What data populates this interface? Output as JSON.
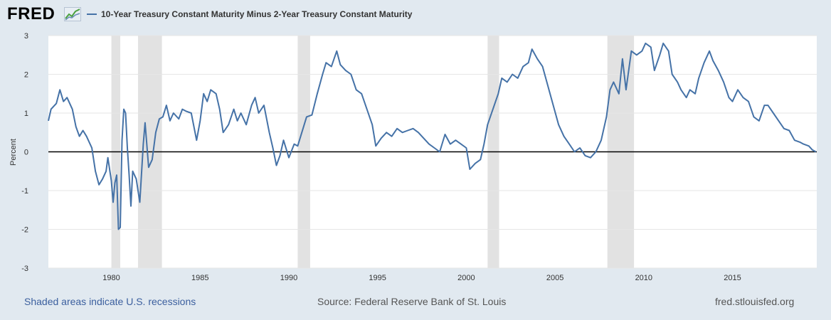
{
  "header": {
    "logo_text": "FRED",
    "series_label": "10-Year Treasury Constant Maturity Minus 2-Year Treasury Constant Maturity",
    "line_color": "#4572a7"
  },
  "footer": {
    "note": "Shaded areas indicate U.S. recessions",
    "source": "Source: Federal Reserve Bank of St. Louis",
    "url": "fred.stlouisfed.org"
  },
  "chart_data": {
    "type": "line",
    "title": "10-Year Treasury Constant Maturity Minus 2-Year Treasury Constant Maturity",
    "xlabel": "",
    "ylabel": "Percent",
    "xlim": [
      1976.45,
      2019.75
    ],
    "ylim": [
      -3,
      3
    ],
    "x_ticks": [
      1980,
      1985,
      1990,
      1995,
      2000,
      2005,
      2010,
      2015
    ],
    "y_ticks": [
      -3,
      -2,
      -1,
      0,
      1,
      2,
      3
    ],
    "grid": true,
    "zero_line": true,
    "recessions": [
      [
        1980.0,
        1980.5
      ],
      [
        1981.5,
        1982.85
      ],
      [
        1990.5,
        1991.2
      ],
      [
        2001.2,
        2001.85
      ],
      [
        2007.95,
        2009.45
      ]
    ],
    "series": [
      {
        "name": "10-Year Treasury Constant Maturity Minus 2-Year Treasury Constant Maturity",
        "color": "#4572a7",
        "points": [
          [
            1976.45,
            0.8
          ],
          [
            1976.6,
            1.1
          ],
          [
            1976.9,
            1.25
          ],
          [
            1977.1,
            1.6
          ],
          [
            1977.3,
            1.3
          ],
          [
            1977.5,
            1.4
          ],
          [
            1977.8,
            1.1
          ],
          [
            1978.0,
            0.65
          ],
          [
            1978.2,
            0.4
          ],
          [
            1978.4,
            0.55
          ],
          [
            1978.6,
            0.4
          ],
          [
            1978.9,
            0.1
          ],
          [
            1979.1,
            -0.5
          ],
          [
            1979.3,
            -0.85
          ],
          [
            1979.5,
            -0.7
          ],
          [
            1979.7,
            -0.5
          ],
          [
            1979.8,
            -0.15
          ],
          [
            1980.0,
            -0.75
          ],
          [
            1980.1,
            -1.3
          ],
          [
            1980.2,
            -0.8
          ],
          [
            1980.3,
            -0.6
          ],
          [
            1980.4,
            -2.0
          ],
          [
            1980.5,
            -1.95
          ],
          [
            1980.6,
            0.3
          ],
          [
            1980.7,
            1.1
          ],
          [
            1980.8,
            1.0
          ],
          [
            1980.9,
            0.1
          ],
          [
            1981.0,
            -0.6
          ],
          [
            1981.1,
            -1.4
          ],
          [
            1981.2,
            -0.5
          ],
          [
            1981.4,
            -0.7
          ],
          [
            1981.5,
            -1.0
          ],
          [
            1981.6,
            -1.3
          ],
          [
            1981.8,
            0.2
          ],
          [
            1981.9,
            0.75
          ],
          [
            1982.1,
            -0.4
          ],
          [
            1982.3,
            -0.2
          ],
          [
            1982.5,
            0.5
          ],
          [
            1982.7,
            0.85
          ],
          [
            1982.9,
            0.9
          ],
          [
            1983.1,
            1.2
          ],
          [
            1983.3,
            0.8
          ],
          [
            1983.5,
            1.0
          ],
          [
            1983.8,
            0.85
          ],
          [
            1984.0,
            1.1
          ],
          [
            1984.2,
            1.05
          ],
          [
            1984.5,
            1.0
          ],
          [
            1984.8,
            0.3
          ],
          [
            1985.0,
            0.8
          ],
          [
            1985.2,
            1.5
          ],
          [
            1985.4,
            1.3
          ],
          [
            1985.6,
            1.6
          ],
          [
            1985.9,
            1.5
          ],
          [
            1986.1,
            1.1
          ],
          [
            1986.3,
            0.5
          ],
          [
            1986.6,
            0.7
          ],
          [
            1986.9,
            1.1
          ],
          [
            1987.1,
            0.8
          ],
          [
            1987.3,
            1.0
          ],
          [
            1987.6,
            0.7
          ],
          [
            1987.9,
            1.2
          ],
          [
            1988.1,
            1.4
          ],
          [
            1988.3,
            1.0
          ],
          [
            1988.6,
            1.2
          ],
          [
            1988.9,
            0.5
          ],
          [
            1989.1,
            0.1
          ],
          [
            1989.3,
            -0.35
          ],
          [
            1989.5,
            -0.1
          ],
          [
            1989.7,
            0.3
          ],
          [
            1990.0,
            -0.15
          ],
          [
            1990.3,
            0.2
          ],
          [
            1990.5,
            0.15
          ],
          [
            1990.8,
            0.6
          ],
          [
            1991.0,
            0.9
          ],
          [
            1991.3,
            0.95
          ],
          [
            1991.6,
            1.5
          ],
          [
            1991.9,
            2.0
          ],
          [
            1992.1,
            2.3
          ],
          [
            1992.4,
            2.2
          ],
          [
            1992.7,
            2.6
          ],
          [
            1992.9,
            2.25
          ],
          [
            1993.2,
            2.1
          ],
          [
            1993.5,
            2.0
          ],
          [
            1993.8,
            1.6
          ],
          [
            1994.1,
            1.5
          ],
          [
            1994.4,
            1.1
          ],
          [
            1994.7,
            0.7
          ],
          [
            1994.9,
            0.15
          ],
          [
            1995.2,
            0.35
          ],
          [
            1995.5,
            0.5
          ],
          [
            1995.8,
            0.4
          ],
          [
            1996.1,
            0.6
          ],
          [
            1996.4,
            0.5
          ],
          [
            1996.7,
            0.55
          ],
          [
            1997.0,
            0.6
          ],
          [
            1997.3,
            0.5
          ],
          [
            1997.6,
            0.35
          ],
          [
            1997.9,
            0.2
          ],
          [
            1998.2,
            0.1
          ],
          [
            1998.5,
            0.0
          ],
          [
            1998.8,
            0.45
          ],
          [
            1999.1,
            0.2
          ],
          [
            1999.4,
            0.3
          ],
          [
            1999.7,
            0.2
          ],
          [
            2000.0,
            0.1
          ],
          [
            2000.2,
            -0.45
          ],
          [
            2000.5,
            -0.3
          ],
          [
            2000.8,
            -0.2
          ],
          [
            2001.0,
            0.2
          ],
          [
            2001.2,
            0.7
          ],
          [
            2001.5,
            1.1
          ],
          [
            2001.8,
            1.5
          ],
          [
            2002.0,
            1.9
          ],
          [
            2002.3,
            1.8
          ],
          [
            2002.6,
            2.0
          ],
          [
            2002.9,
            1.9
          ],
          [
            2003.2,
            2.2
          ],
          [
            2003.5,
            2.3
          ],
          [
            2003.7,
            2.65
          ],
          [
            2004.0,
            2.4
          ],
          [
            2004.3,
            2.2
          ],
          [
            2004.6,
            1.7
          ],
          [
            2004.9,
            1.2
          ],
          [
            2005.2,
            0.7
          ],
          [
            2005.5,
            0.4
          ],
          [
            2005.8,
            0.2
          ],
          [
            2006.1,
            0.0
          ],
          [
            2006.4,
            0.1
          ],
          [
            2006.7,
            -0.1
          ],
          [
            2007.0,
            -0.15
          ],
          [
            2007.3,
            0.0
          ],
          [
            2007.6,
            0.3
          ],
          [
            2007.9,
            0.9
          ],
          [
            2008.1,
            1.6
          ],
          [
            2008.3,
            1.8
          ],
          [
            2008.6,
            1.5
          ],
          [
            2008.8,
            2.4
          ],
          [
            2009.0,
            1.6
          ],
          [
            2009.3,
            2.6
          ],
          [
            2009.6,
            2.5
          ],
          [
            2009.9,
            2.6
          ],
          [
            2010.1,
            2.8
          ],
          [
            2010.4,
            2.7
          ],
          [
            2010.6,
            2.1
          ],
          [
            2010.9,
            2.5
          ],
          [
            2011.1,
            2.8
          ],
          [
            2011.4,
            2.6
          ],
          [
            2011.6,
            2.0
          ],
          [
            2011.9,
            1.8
          ],
          [
            2012.1,
            1.6
          ],
          [
            2012.4,
            1.4
          ],
          [
            2012.6,
            1.6
          ],
          [
            2012.9,
            1.5
          ],
          [
            2013.1,
            1.9
          ],
          [
            2013.4,
            2.3
          ],
          [
            2013.7,
            2.6
          ],
          [
            2013.9,
            2.35
          ],
          [
            2014.2,
            2.1
          ],
          [
            2014.5,
            1.8
          ],
          [
            2014.8,
            1.4
          ],
          [
            2015.0,
            1.3
          ],
          [
            2015.3,
            1.6
          ],
          [
            2015.6,
            1.4
          ],
          [
            2015.9,
            1.3
          ],
          [
            2016.2,
            0.9
          ],
          [
            2016.5,
            0.8
          ],
          [
            2016.8,
            1.2
          ],
          [
            2017.0,
            1.2
          ],
          [
            2017.3,
            1.0
          ],
          [
            2017.6,
            0.8
          ],
          [
            2017.9,
            0.6
          ],
          [
            2018.2,
            0.55
          ],
          [
            2018.5,
            0.3
          ],
          [
            2018.8,
            0.25
          ],
          [
            2019.0,
            0.2
          ],
          [
            2019.3,
            0.15
          ],
          [
            2019.5,
            0.05
          ],
          [
            2019.7,
            0.0
          ]
        ]
      }
    ]
  }
}
